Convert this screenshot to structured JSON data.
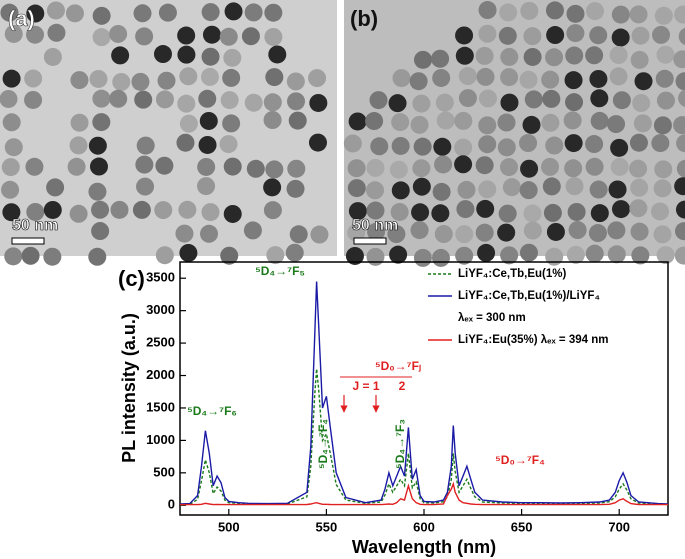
{
  "panels": [
    {
      "label": "(a)",
      "scale_bar": "50 nm"
    },
    {
      "label": "(b)",
      "scale_bar": "50 nm"
    }
  ],
  "chart_data": {
    "type": "line",
    "panel_label": "(c)",
    "x_label": "Wavelength  (nm)",
    "y_label": "PL intensity  (a.u.)",
    "x": [
      475,
      480,
      484,
      486,
      488,
      490,
      492,
      494,
      496,
      498,
      500,
      505,
      510,
      520,
      530,
      540,
      542,
      544,
      545,
      546,
      548,
      550,
      552,
      555,
      560,
      570,
      578,
      580,
      582,
      584,
      586,
      588,
      590,
      592,
      594,
      596,
      598,
      600,
      605,
      610,
      612,
      614,
      615,
      616,
      618,
      620,
      622,
      624,
      626,
      630,
      640,
      650,
      660,
      670,
      680,
      690,
      695,
      698,
      700,
      702,
      704,
      706,
      710,
      720,
      725
    ],
    "series": [
      {
        "name": "LiYF₄:Ce,Tb,Eu(1%)",
        "color": "#1a7a1a",
        "dash": true,
        "values": [
          10,
          15,
          90,
          380,
          700,
          500,
          180,
          280,
          220,
          80,
          40,
          30,
          20,
          18,
          20,
          130,
          600,
          1700,
          2100,
          1800,
          1000,
          1100,
          800,
          320,
          80,
          30,
          50,
          160,
          330,
          200,
          300,
          400,
          300,
          800,
          270,
          360,
          100,
          40,
          35,
          55,
          130,
          400,
          800,
          520,
          200,
          300,
          400,
          260,
          130,
          50,
          35,
          28,
          28,
          25,
          28,
          35,
          55,
          130,
          250,
          330,
          230,
          100,
          35,
          18,
          12
        ]
      },
      {
        "name": "LiYF₄:Ce,Tb,Eu(1%)/LiYF₄",
        "color": "#1a1aa6",
        "dash": false,
        "values": [
          20,
          25,
          150,
          600,
          1150,
          800,
          300,
          450,
          350,
          120,
          60,
          40,
          30,
          25,
          30,
          200,
          900,
          2600,
          3450,
          2800,
          1500,
          1680,
          1200,
          500,
          120,
          40,
          80,
          250,
          500,
          300,
          450,
          600,
          450,
          1200,
          400,
          550,
          150,
          60,
          50,
          80,
          200,
          600,
          1230,
          800,
          300,
          450,
          600,
          400,
          200,
          80,
          50,
          40,
          40,
          35,
          40,
          50,
          80,
          200,
          380,
          500,
          350,
          150,
          50,
          25,
          20
        ]
      },
      {
        "name": "LiYF₄:Eu(35%) λₑₓ = 394 nm",
        "color": "#e02020",
        "dash": false,
        "values": [
          10,
          10,
          10,
          15,
          30,
          20,
          10,
          12,
          10,
          10,
          10,
          10,
          10,
          10,
          10,
          12,
          20,
          35,
          40,
          30,
          15,
          15,
          12,
          10,
          10,
          10,
          10,
          15,
          20,
          15,
          40,
          100,
          80,
          300,
          100,
          40,
          15,
          10,
          10,
          20,
          150,
          250,
          330,
          200,
          80,
          40,
          30,
          20,
          15,
          10,
          10,
          10,
          10,
          10,
          10,
          10,
          15,
          40,
          80,
          100,
          60,
          25,
          10,
          10,
          10
        ]
      }
    ],
    "legend_note": "λₑₓ = 300 nm",
    "xlim": [
      475,
      725
    ],
    "xticks": [
      500,
      550,
      600,
      650,
      700
    ],
    "ylim": [
      -150,
      3750
    ],
    "yticks": [
      0,
      500,
      1000,
      1500,
      2000,
      2500,
      3000,
      3500
    ],
    "annotations": [
      {
        "text": "⁵D₄→⁷F₅",
        "color": "#1a7a1a"
      },
      {
        "text": "⁵D₄→⁷F₆",
        "color": "#1a7a1a"
      },
      {
        "text": "⁵D₄→⁷F₄",
        "color": "#1a7a1a"
      },
      {
        "text": "⁵D₄→⁷F₃",
        "color": "#1a7a1a"
      },
      {
        "text": "⁵D₀→⁷Fⱼ",
        "color": "#e02020"
      },
      {
        "text": "J = 1",
        "color": "#e02020"
      },
      {
        "text": "2",
        "color": "#e02020"
      },
      {
        "text": "⁵D₀→⁷F₄",
        "color": "#e02020"
      }
    ]
  }
}
